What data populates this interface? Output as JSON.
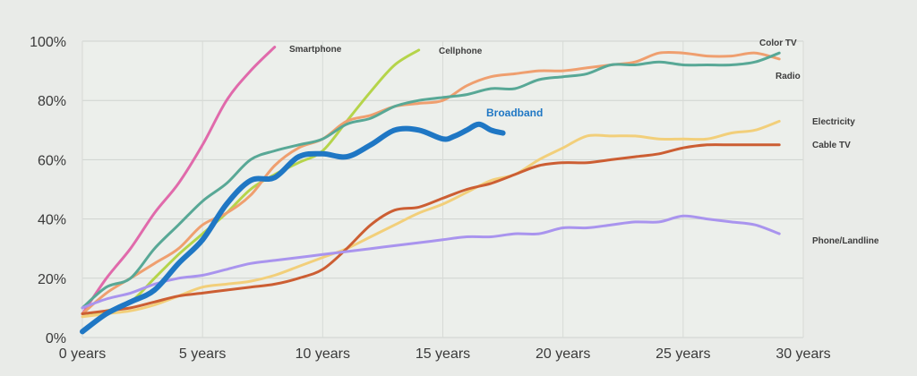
{
  "chart_data": {
    "type": "line",
    "title": "",
    "xlabel": "",
    "ylabel": "",
    "xlim": [
      0,
      30
    ],
    "ylim": [
      0,
      100
    ],
    "x_ticks": [
      0,
      5,
      10,
      15,
      20,
      25,
      30
    ],
    "x_tick_labels": [
      "0 years",
      "5 years",
      "10 years",
      "15 years",
      "20 years",
      "25 years",
      "30 years"
    ],
    "y_ticks": [
      0,
      20,
      40,
      60,
      80,
      100
    ],
    "y_tick_labels": [
      "0%",
      "20%",
      "40%",
      "60%",
      "80%",
      "100%"
    ],
    "grid": true,
    "legend": "labels at line ends",
    "series": [
      {
        "name": "Smartphone",
        "color": "#e06aab",
        "width": 3,
        "x": [
          0,
          1,
          2,
          3,
          4,
          5,
          6,
          7,
          8
        ],
        "y": [
          8,
          20,
          30,
          42,
          52,
          65,
          80,
          90,
          98
        ]
      },
      {
        "name": "Cellphone",
        "color": "#b5d44a",
        "width": 3,
        "x": [
          0,
          1,
          2,
          3,
          4,
          5,
          6,
          7,
          8,
          9,
          10,
          11,
          12,
          13,
          14
        ],
        "y": [
          8,
          9,
          12,
          20,
          28,
          35,
          42,
          50,
          55,
          59,
          63,
          73,
          83,
          92,
          97
        ]
      },
      {
        "name": "Color TV",
        "color": "#ef9f6f",
        "width": 3,
        "x": [
          0,
          1,
          2,
          3,
          4,
          5,
          6,
          7,
          8,
          9,
          10,
          11,
          12,
          13,
          14,
          15,
          16,
          17,
          18,
          19,
          20,
          21,
          22,
          23,
          24,
          25,
          26,
          27,
          28,
          29
        ],
        "y": [
          8,
          15,
          20,
          25,
          30,
          38,
          42,
          48,
          58,
          64,
          67,
          73,
          75,
          78,
          79,
          80,
          85,
          88,
          89,
          90,
          90,
          91,
          92,
          93,
          96,
          96,
          95,
          95,
          96,
          94
        ]
      },
      {
        "name": "Radio",
        "color": "#58a896",
        "width": 3,
        "x": [
          0,
          1,
          2,
          3,
          4,
          5,
          6,
          7,
          8,
          9,
          10,
          11,
          12,
          13,
          14,
          15,
          16,
          17,
          18,
          19,
          20,
          21,
          22,
          23,
          24,
          25,
          26,
          27,
          28,
          29
        ],
        "y": [
          10,
          17,
          20,
          30,
          38,
          46,
          52,
          60,
          63,
          65,
          67,
          72,
          74,
          78,
          80,
          81,
          82,
          84,
          84,
          87,
          88,
          89,
          92,
          92,
          93,
          92,
          92,
          92,
          93,
          96
        ]
      },
      {
        "name": "Broadband",
        "color": "#1f77c4",
        "width": 6,
        "x": [
          0,
          1,
          2,
          3,
          4,
          5,
          6,
          7,
          8,
          9,
          10,
          11,
          12,
          13,
          14,
          15,
          15.5,
          16,
          16.5,
          17,
          17.5
        ],
        "y": [
          2,
          8,
          12,
          16,
          25,
          33,
          45,
          53,
          54,
          61,
          62,
          61,
          65,
          70,
          70,
          67,
          68,
          70,
          72,
          70,
          69
        ]
      },
      {
        "name": "Electricity",
        "color": "#f2cf7a",
        "width": 3,
        "x": [
          0,
          1,
          2,
          3,
          4,
          5,
          6,
          7,
          8,
          9,
          10,
          11,
          12,
          13,
          14,
          15,
          16,
          17,
          18,
          19,
          20,
          21,
          22,
          23,
          24,
          25,
          26,
          27,
          28,
          29
        ],
        "y": [
          7,
          8,
          9,
          11,
          14,
          17,
          18,
          19,
          21,
          24,
          27,
          30,
          34,
          38,
          42,
          45,
          49,
          53,
          55,
          60,
          64,
          68,
          68,
          68,
          67,
          67,
          67,
          69,
          70,
          73
        ]
      },
      {
        "name": "Cable TV",
        "color": "#cc5e33",
        "width": 3,
        "x": [
          0,
          1,
          2,
          3,
          4,
          5,
          6,
          7,
          8,
          9,
          10,
          11,
          12,
          13,
          14,
          15,
          16,
          17,
          18,
          19,
          20,
          21,
          22,
          23,
          24,
          25,
          26,
          27,
          28,
          29
        ],
        "y": [
          8,
          9,
          10,
          12,
          14,
          15,
          16,
          17,
          18,
          20,
          23,
          30,
          38,
          43,
          44,
          47,
          50,
          52,
          55,
          58,
          59,
          59,
          60,
          61,
          62,
          64,
          65,
          65,
          65,
          65
        ]
      },
      {
        "name": "Phone/Landline",
        "color": "#a994ee",
        "width": 3,
        "x": [
          0,
          1,
          2,
          3,
          4,
          5,
          6,
          7,
          8,
          9,
          10,
          11,
          12,
          13,
          14,
          15,
          16,
          17,
          18,
          19,
          20,
          21,
          22,
          23,
          24,
          25,
          26,
          27,
          28,
          29
        ],
        "y": [
          10,
          13,
          15,
          18,
          20,
          21,
          23,
          25,
          26,
          27,
          28,
          29,
          30,
          31,
          32,
          33,
          34,
          34,
          35,
          35,
          37,
          37,
          38,
          39,
          39,
          41,
          40,
          39,
          38,
          35
        ]
      }
    ],
    "labels": [
      {
        "text": "Smartphone",
        "series": "Smartphone"
      },
      {
        "text": "Cellphone",
        "series": "Cellphone"
      },
      {
        "text": "Color TV",
        "series": "Color TV"
      },
      {
        "text": "Radio",
        "series": "Radio"
      },
      {
        "text": "Broadband",
        "series": "Broadband"
      },
      {
        "text": "Electricity",
        "series": "Electricity"
      },
      {
        "text": "Cable TV",
        "series": "Cable TV"
      },
      {
        "text": "Phone/Landline",
        "series": "Phone/Landline"
      }
    ]
  }
}
